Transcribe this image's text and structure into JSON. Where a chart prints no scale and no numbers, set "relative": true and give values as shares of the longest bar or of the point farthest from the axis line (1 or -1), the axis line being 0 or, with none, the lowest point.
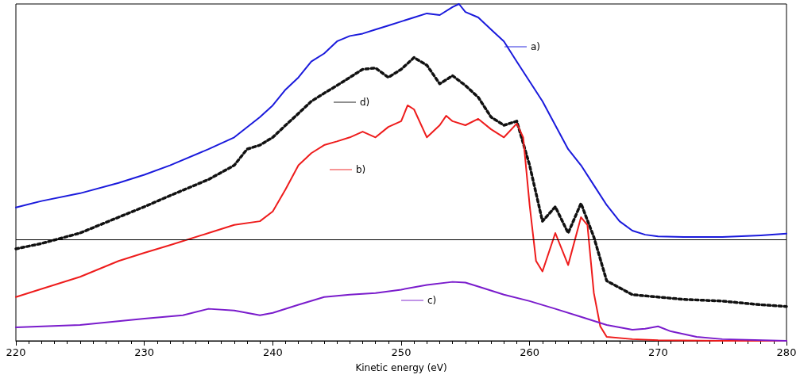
{
  "chart_data": {
    "type": "line",
    "relative": true,
    "xlabel": "Kinetic energy (eV)",
    "xlim": [
      220,
      280
    ],
    "xticks": [
      220,
      230,
      240,
      250,
      260,
      270,
      280
    ],
    "grid": false,
    "legend": "right",
    "marker": "none",
    "ref_lines": [
      {
        "axis": "y",
        "value": 0.303,
        "color": "#000000"
      }
    ],
    "series": [
      {
        "name": "a)",
        "color": "#1a1adc",
        "line_style": "solid",
        "x": [
          220,
          222,
          225,
          228,
          230,
          232,
          235,
          237,
          239,
          240,
          241,
          242,
          243,
          244,
          245,
          246,
          247,
          248,
          249,
          250,
          251,
          252,
          253,
          254,
          254.5,
          255,
          256,
          257,
          258,
          259,
          260,
          261,
          262,
          263,
          264,
          265,
          266,
          267,
          268,
          269,
          270,
          272,
          275,
          278,
          280
        ],
        "values": [
          0.396,
          0.415,
          0.438,
          0.469,
          0.493,
          0.521,
          0.569,
          0.604,
          0.664,
          0.699,
          0.746,
          0.782,
          0.829,
          0.853,
          0.889,
          0.905,
          0.912,
          0.924,
          0.936,
          0.948,
          0.96,
          0.972,
          0.967,
          0.991,
          1.0,
          0.976,
          0.96,
          0.924,
          0.889,
          0.829,
          0.77,
          0.711,
          0.64,
          0.569,
          0.521,
          0.462,
          0.403,
          0.355,
          0.327,
          0.315,
          0.31,
          0.308,
          0.308,
          0.313,
          0.318
        ]
      },
      {
        "name": "d)",
        "color": "#111111",
        "line_style": "dotted",
        "x": [
          220,
          222,
          225,
          228,
          230,
          232,
          235,
          237,
          238,
          239,
          240,
          241,
          242,
          243,
          244,
          245,
          246,
          247,
          248,
          249,
          250,
          251,
          252,
          253,
          254,
          255,
          256,
          257,
          258,
          259,
          260,
          261,
          262,
          263,
          264,
          265,
          266,
          268,
          270,
          272,
          275,
          278,
          280
        ],
        "values": [
          0.273,
          0.289,
          0.32,
          0.367,
          0.398,
          0.431,
          0.479,
          0.521,
          0.569,
          0.581,
          0.604,
          0.64,
          0.675,
          0.711,
          0.735,
          0.758,
          0.782,
          0.806,
          0.81,
          0.782,
          0.806,
          0.841,
          0.818,
          0.763,
          0.787,
          0.758,
          0.723,
          0.664,
          0.64,
          0.652,
          0.521,
          0.355,
          0.398,
          0.32,
          0.408,
          0.308,
          0.178,
          0.137,
          0.13,
          0.123,
          0.118,
          0.107,
          0.102
        ]
      },
      {
        "name": "b)",
        "color": "#ee1c1c",
        "line_style": "solid",
        "x": [
          220,
          222,
          225,
          228,
          230,
          232,
          235,
          237,
          239,
          240,
          241,
          242,
          243,
          244,
          245,
          246,
          247,
          248,
          249,
          250,
          250.5,
          251,
          252,
          253,
          253.5,
          254,
          255,
          256,
          257,
          258,
          259,
          259.5,
          260,
          260.5,
          261,
          262,
          263,
          264,
          264.5,
          265,
          265.5,
          266,
          268,
          270,
          275,
          280
        ],
        "values": [
          0.13,
          0.154,
          0.19,
          0.237,
          0.261,
          0.284,
          0.32,
          0.344,
          0.355,
          0.384,
          0.45,
          0.521,
          0.557,
          0.581,
          0.592,
          0.604,
          0.621,
          0.604,
          0.635,
          0.652,
          0.699,
          0.687,
          0.604,
          0.64,
          0.668,
          0.652,
          0.64,
          0.659,
          0.628,
          0.604,
          0.645,
          0.604,
          0.403,
          0.237,
          0.206,
          0.32,
          0.225,
          0.367,
          0.344,
          0.142,
          0.043,
          0.012,
          0.005,
          0.002,
          0,
          0
        ]
      },
      {
        "name": "c)",
        "color": "#7a1ccc",
        "line_style": "solid",
        "x": [
          220,
          225,
          230,
          233,
          235,
          237,
          239,
          240,
          242,
          244,
          246,
          248,
          250,
          252,
          254,
          255,
          256,
          258,
          260,
          262,
          264,
          266,
          268,
          269,
          270,
          271,
          273,
          275,
          280
        ],
        "values": [
          0.04,
          0.047,
          0.066,
          0.076,
          0.095,
          0.09,
          0.076,
          0.083,
          0.107,
          0.13,
          0.137,
          0.142,
          0.152,
          0.166,
          0.175,
          0.173,
          0.161,
          0.137,
          0.118,
          0.095,
          0.071,
          0.047,
          0.033,
          0.036,
          0.043,
          0.028,
          0.012,
          0.005,
          0
        ]
      }
    ]
  }
}
